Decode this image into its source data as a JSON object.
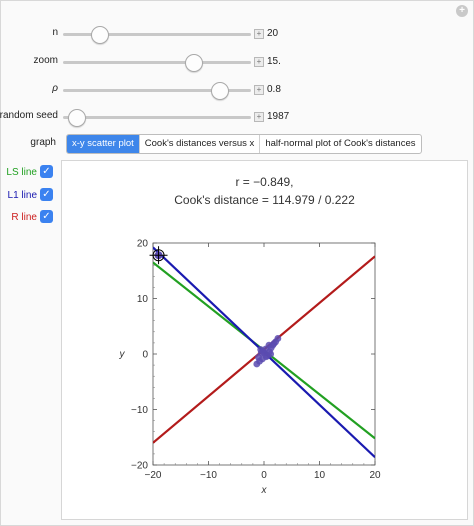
{
  "controls": {
    "n": {
      "label": "n",
      "value": "20",
      "fraction": 0.16
    },
    "zoom": {
      "label": "zoom",
      "value": "15.",
      "fraction": 0.71
    },
    "rho": {
      "label": "ρ",
      "value": "0.8",
      "fraction": 0.86
    },
    "seed": {
      "label": "random seed",
      "value": "1987",
      "fraction": 0.03
    }
  },
  "graph": {
    "label": "graph",
    "options": [
      "x-y scatter plot",
      "Cook's distances versus x",
      "half-normal plot of Cook's distances"
    ],
    "selected": 0
  },
  "checkboxes": [
    {
      "label": "LS line",
      "color": "#22a022",
      "checked": true
    },
    {
      "label": "L1 line",
      "color": "#1a1ab0",
      "checked": true
    },
    {
      "label": "R line",
      "color": "#cc1f1f",
      "checked": true
    }
  ],
  "readout": {
    "r_text": "r = −0.849,",
    "cook_text": "Cook's distance  = 114.979 / 0.222"
  },
  "chart_data": {
    "type": "scatter",
    "xlabel": "x",
    "ylabel": "y",
    "xlim": [
      -20,
      20
    ],
    "ylim": [
      -20,
      20
    ],
    "xticks": [
      -20,
      -10,
      0,
      10,
      20
    ],
    "yticks": [
      -20,
      -10,
      0,
      10,
      20
    ],
    "xtick_labels": [
      "−20",
      "−10",
      "0",
      "10",
      "20"
    ],
    "ytick_labels": [
      "−20",
      "−10",
      "0",
      "10",
      "20"
    ],
    "points": {
      "x": [
        -1.3,
        -1.0,
        -0.6,
        -0.3,
        0.0,
        0.3,
        0.6,
        1.0,
        1.3,
        1.6,
        2.1,
        2.5,
        -0.8,
        0.9,
        1.8,
        -0.2,
        0.4,
        1.2,
        -0.5
      ],
      "y": [
        -1.8,
        -0.6,
        0.8,
        -0.9,
        0.2,
        0.9,
        -0.3,
        0.4,
        1.1,
        1.6,
        2.2,
        2.8,
        -1.3,
        1.6,
        1.9,
        0.5,
        -0.5,
        0.0,
        0.2
      ]
    },
    "outlier": {
      "x": -19,
      "y": 17.8
    },
    "lines": [
      {
        "label": "LS line",
        "color": "#22a022",
        "x": [
          -20,
          20
        ],
        "y": [
          16.5,
          -15.2
        ]
      },
      {
        "label": "L1 line",
        "color": "#1a1ab0",
        "x": [
          -20,
          20
        ],
        "y": [
          19.2,
          -18.6
        ]
      },
      {
        "label": "R line",
        "color": "#b31b1b",
        "x": [
          -20,
          20
        ],
        "y": [
          -16.0,
          17.6
        ]
      }
    ],
    "point_color": "#5b4bb0"
  }
}
